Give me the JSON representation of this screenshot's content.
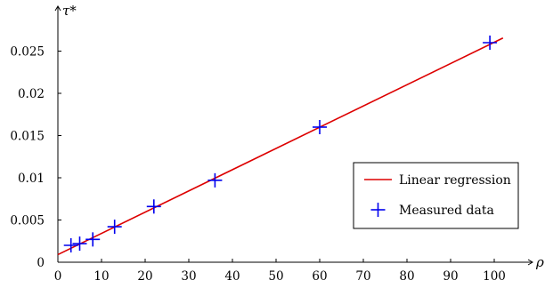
{
  "chart_data": {
    "type": "scatter",
    "title": "",
    "xlabel": "ρ",
    "ylabel": "τ*",
    "xlim": [
      0,
      105
    ],
    "ylim": [
      0,
      0.029
    ],
    "x_ticks": [
      0,
      10,
      20,
      30,
      40,
      50,
      60,
      70,
      80,
      90,
      100
    ],
    "x_tick_labels": [
      "0",
      "10",
      "20",
      "30",
      "40",
      "50",
      "60",
      "70",
      "80",
      "90",
      "100"
    ],
    "y_ticks": [
      0,
      0.005,
      0.01,
      0.015,
      0.02,
      0.025
    ],
    "y_tick_labels": [
      "0",
      "0.005",
      "0.01",
      "0.015",
      "0.02",
      "0.025"
    ],
    "grid": false,
    "legend_position": "right",
    "series": [
      {
        "name": "Linear regression",
        "kind": "line",
        "color": "#dd0000",
        "x": [
          0,
          102
        ],
        "y": [
          0.0009,
          0.02655
        ]
      },
      {
        "name": "Measured data",
        "kind": "points",
        "marker": "plus",
        "color": "#0000ee",
        "x": [
          3,
          5,
          8,
          13,
          22,
          36,
          60,
          99
        ],
        "y": [
          0.002,
          0.0022,
          0.0027,
          0.0042,
          0.0066,
          0.0097,
          0.016,
          0.026
        ]
      }
    ]
  }
}
